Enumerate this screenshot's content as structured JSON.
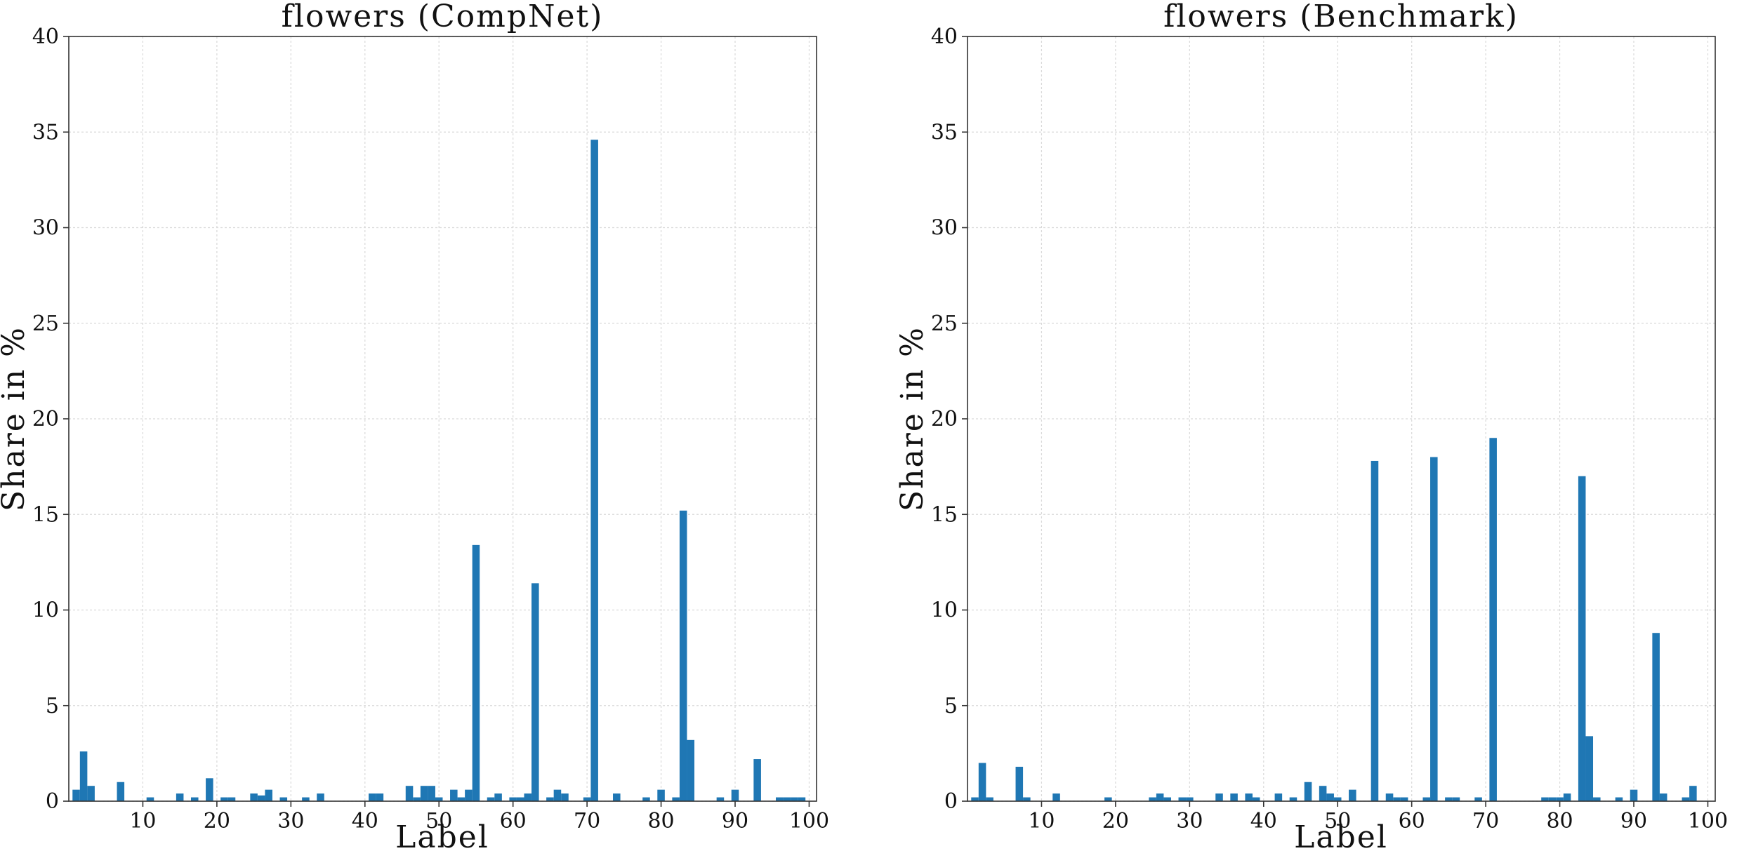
{
  "chart_data": [
    {
      "type": "bar",
      "title": "flowers (CompNet)",
      "xlabel": "Label",
      "ylabel": "Share in %",
      "xlim": [
        0,
        101
      ],
      "ylim": [
        0,
        40
      ],
      "xticks": [
        10,
        20,
        30,
        40,
        50,
        60,
        70,
        80,
        90,
        100
      ],
      "yticks": [
        0,
        5,
        10,
        15,
        20,
        25,
        30,
        35,
        40
      ],
      "grid": true,
      "bar_color": "#1f77b4",
      "x": [
        1,
        2,
        3,
        7,
        11,
        15,
        17,
        19,
        21,
        22,
        25,
        26,
        27,
        29,
        32,
        34,
        41,
        42,
        46,
        47,
        48,
        49,
        50,
        52,
        53,
        54,
        55,
        57,
        58,
        60,
        61,
        62,
        63,
        65,
        66,
        67,
        70,
        71,
        74,
        78,
        80,
        82,
        83,
        84,
        88,
        90,
        93,
        96,
        97,
        98,
        99
      ],
      "values": [
        0.6,
        2.6,
        0.8,
        1.0,
        0.2,
        0.4,
        0.2,
        1.2,
        0.2,
        0.2,
        0.4,
        0.3,
        0.6,
        0.2,
        0.2,
        0.4,
        0.4,
        0.4,
        0.8,
        0.2,
        0.8,
        0.8,
        0.2,
        0.6,
        0.2,
        0.6,
        13.4,
        0.2,
        0.4,
        0.2,
        0.2,
        0.4,
        11.4,
        0.2,
        0.6,
        0.4,
        0.2,
        34.6,
        0.4,
        0.2,
        0.6,
        0.2,
        15.2,
        3.2,
        0.2,
        0.6,
        2.2,
        0.2,
        0.2,
        0.2,
        0.2
      ]
    },
    {
      "type": "bar",
      "title": "flowers (Benchmark)",
      "xlabel": "Label",
      "ylabel": "Share in %",
      "xlim": [
        0,
        101
      ],
      "ylim": [
        0,
        40
      ],
      "xticks": [
        10,
        20,
        30,
        40,
        50,
        60,
        70,
        80,
        90,
        100
      ],
      "yticks": [
        0,
        5,
        10,
        15,
        20,
        25,
        30,
        35,
        40
      ],
      "grid": true,
      "bar_color": "#1f77b4",
      "x": [
        1,
        2,
        3,
        7,
        8,
        12,
        19,
        25,
        26,
        27,
        29,
        30,
        34,
        36,
        38,
        39,
        42,
        44,
        46,
        48,
        49,
        50,
        52,
        55,
        57,
        58,
        59,
        62,
        63,
        65,
        66,
        69,
        71,
        78,
        79,
        80,
        81,
        83,
        84,
        85,
        88,
        90,
        93,
        94,
        97,
        98
      ],
      "values": [
        0.2,
        2.0,
        0.2,
        1.8,
        0.2,
        0.4,
        0.2,
        0.2,
        0.4,
        0.2,
        0.2,
        0.2,
        0.4,
        0.4,
        0.4,
        0.2,
        0.4,
        0.2,
        1.0,
        0.8,
        0.4,
        0.2,
        0.6,
        17.8,
        0.4,
        0.2,
        0.2,
        0.2,
        18.0,
        0.2,
        0.2,
        0.2,
        19.0,
        0.2,
        0.2,
        0.2,
        0.4,
        17.0,
        3.4,
        0.2,
        0.2,
        0.6,
        8.8,
        0.4,
        0.2,
        0.8
      ]
    }
  ]
}
